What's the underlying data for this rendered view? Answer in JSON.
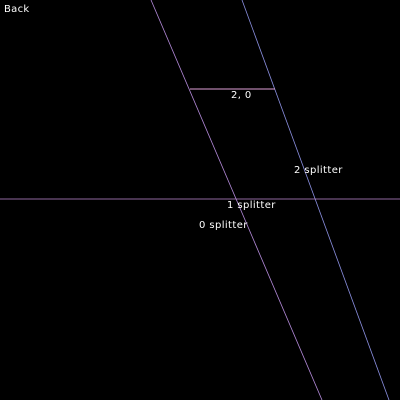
{
  "ui": {
    "back_label": "Back"
  },
  "scene": {
    "background_color": "#000000",
    "label_color": "#ffffff",
    "lines": [
      {
        "id": "diagonal-line-left",
        "color": "#b38ad9"
      },
      {
        "id": "diagonal-line-right",
        "color": "#8a8fe0"
      },
      {
        "id": "horizontal-splitter-line",
        "color": "#c08ad6"
      },
      {
        "id": "short-segment-line",
        "color": "#e0a0d8"
      }
    ],
    "labels": {
      "segment": "2, 0",
      "splitter_2": "2 splitter",
      "splitter_1": "1 splitter",
      "splitter_0": "0 splitter"
    }
  }
}
